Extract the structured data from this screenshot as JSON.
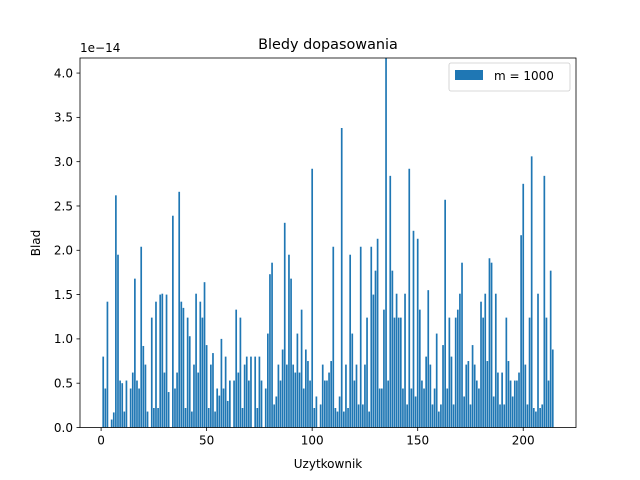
{
  "chart_data": {
    "type": "bar",
    "title": "Bledy dopasowania",
    "xlabel": "Uzytkownik",
    "ylabel": "Blad",
    "offset_label": "1e−14",
    "scale": 1e-14,
    "xlim": [
      -10,
      225
    ],
    "ylim": [
      0,
      4.17
    ],
    "grid": false,
    "legend_position": "top-right",
    "x_ticks": [
      0,
      50,
      100,
      150,
      200
    ],
    "x_tick_labels": [
      "0",
      "50",
      "100",
      "150",
      "200"
    ],
    "y_ticks": [
      0,
      0.5,
      1.0,
      1.5,
      2.0,
      2.5,
      3.0,
      3.5,
      4.0
    ],
    "y_tick_labels": [
      "0.0",
      "0.5",
      "1.0",
      "1.5",
      "2.0",
      "2.5",
      "3.0",
      "3.5",
      "4.0"
    ],
    "bar_color": "#1f77b4",
    "series": [
      {
        "name": "m = 1000",
        "x_start": 1,
        "values": [
          0.8,
          0.44,
          1.42,
          0.0,
          0.09,
          0.17,
          2.62,
          1.95,
          0.53,
          0.5,
          0.18,
          0.53,
          0.0,
          0.44,
          0.62,
          1.68,
          0.53,
          0.44,
          2.04,
          0.92,
          0.71,
          0.18,
          0.0,
          1.24,
          0.22,
          1.42,
          0.22,
          1.5,
          1.51,
          0.62,
          1.5,
          0.4,
          0.0,
          2.39,
          0.44,
          0.62,
          2.66,
          1.42,
          1.35,
          0.22,
          1.24,
          1.03,
          0.18,
          0.71,
          1.51,
          0.62,
          1.42,
          1.24,
          1.64,
          0.93,
          0.22,
          0.71,
          0.84,
          0.18,
          0.44,
          0.36,
          1.0,
          0.44,
          0.8,
          0.3,
          0.53,
          0.0,
          0.53,
          1.33,
          0.62,
          1.24,
          0.22,
          0.71,
          0.8,
          0.53,
          0.8,
          0.0,
          0.8,
          0.22,
          0.8,
          0.53,
          0.0,
          0.44,
          1.06,
          1.73,
          1.86,
          0.26,
          0.35,
          0.71,
          0.53,
          0.88,
          2.31,
          0.71,
          1.95,
          1.68,
          0.71,
          0.62,
          1.06,
          0.62,
          1.33,
          0.44,
          0.88,
          0.75,
          0.53,
          2.92,
          0.22,
          0.35,
          0.0,
          0.26,
          0.71,
          0.53,
          0.53,
          0.62,
          0.75,
          2.04,
          0.22,
          0.18,
          0.35,
          3.38,
          0.18,
          0.71,
          0.22,
          1.95,
          1.06,
          0.53,
          0.71,
          0.26,
          2.04,
          0.26,
          0.71,
          1.24,
          0.18,
          2.04,
          1.5,
          1.77,
          2.13,
          0.44,
          0.44,
          1.33,
          4.17,
          0.53,
          2.84,
          1.77,
          1.24,
          1.51,
          1.24,
          1.24,
          0.44,
          1.51,
          0.26,
          2.92,
          0.44,
          2.22,
          0.35,
          2.13,
          1.33,
          0.53,
          0.44,
          0.8,
          1.55,
          0.71,
          0.26,
          0.44,
          1.06,
          0.18,
          0.26,
          0.93,
          2.57,
          0.44,
          1.24,
          0.8,
          0.26,
          1.24,
          1.33,
          1.51,
          1.86,
          0.35,
          0.71,
          0.75,
          0.26,
          0.93,
          0.71,
          0.53,
          0.44,
          1.42,
          1.24,
          1.51,
          0.75,
          1.91,
          1.86,
          0.35,
          1.51,
          0.62,
          0.26,
          0.62,
          0.26,
          1.24,
          0.75,
          0.53,
          0.35,
          0.53,
          0.53,
          0.62,
          2.17,
          2.75,
          0.71,
          0.26,
          1.24,
          3.06,
          0.22,
          0.18,
          1.51,
          0.22,
          0.26,
          2.84,
          1.24,
          0.53,
          1.77,
          0.88
        ]
      }
    ]
  }
}
